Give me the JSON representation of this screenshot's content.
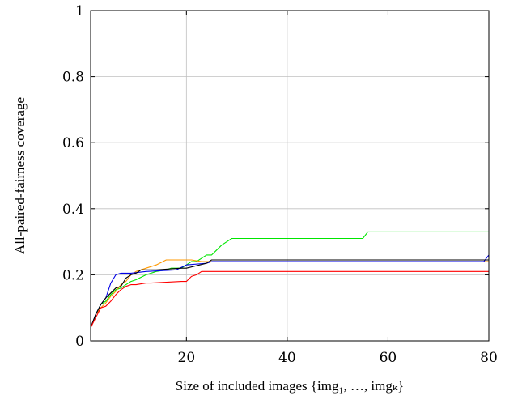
{
  "chart_data": {
    "type": "line",
    "xlabel": "Size of included images {img₁, …, imgₖ}",
    "ylabel": "All-paired-fairness coverage",
    "xlim": [
      1,
      80
    ],
    "ylim": [
      0,
      1
    ],
    "xticks": [
      20,
      40,
      60,
      80
    ],
    "yticks": [
      0,
      0.2,
      0.4,
      0.6,
      0.8,
      1
    ],
    "ytick_labels": [
      "0",
      "0.2",
      "0.4",
      "0.6",
      "0.8",
      "1"
    ],
    "grid": true,
    "legend": "none",
    "series": [
      {
        "color": "#00e600",
        "x": [
          1,
          2,
          3,
          4,
          5,
          6,
          7,
          8,
          9,
          10,
          12,
          14,
          16,
          17,
          19,
          21,
          22,
          24,
          25,
          26,
          27,
          28,
          29,
          55,
          56,
          80
        ],
        "y": [
          0.04,
          0.08,
          0.11,
          0.12,
          0.14,
          0.155,
          0.16,
          0.17,
          0.18,
          0.185,
          0.2,
          0.21,
          0.215,
          0.22,
          0.22,
          0.24,
          0.24,
          0.26,
          0.26,
          0.275,
          0.29,
          0.3,
          0.31,
          0.31,
          0.33,
          0.33
        ]
      },
      {
        "color": "#ff9900",
        "x": [
          1,
          2,
          3,
          4,
          5,
          6,
          7,
          8,
          9,
          10,
          12,
          14,
          16,
          17,
          20,
          21,
          23,
          25,
          80
        ],
        "y": [
          0.04,
          0.08,
          0.1,
          0.115,
          0.135,
          0.15,
          0.17,
          0.18,
          0.2,
          0.21,
          0.22,
          0.23,
          0.245,
          0.245,
          0.245,
          0.245,
          0.24,
          0.24,
          0.24
        ]
      },
      {
        "color": "#0000e6",
        "x": [
          1,
          2,
          3,
          4,
          5,
          6,
          7,
          9,
          12,
          18,
          20,
          24,
          25,
          79,
          80
        ],
        "y": [
          0.04,
          0.08,
          0.11,
          0.13,
          0.175,
          0.2,
          0.205,
          0.205,
          0.21,
          0.215,
          0.23,
          0.235,
          0.24,
          0.24,
          0.26
        ]
      },
      {
        "color": "#000000",
        "x": [
          1,
          2,
          3,
          4,
          5,
          6,
          7,
          8,
          9,
          10,
          11,
          14,
          19,
          20,
          24,
          25,
          80
        ],
        "y": [
          0.04,
          0.08,
          0.11,
          0.13,
          0.145,
          0.16,
          0.165,
          0.19,
          0.2,
          0.205,
          0.215,
          0.215,
          0.22,
          0.22,
          0.235,
          0.245,
          0.245
        ]
      },
      {
        "color": "#ff0000",
        "x": [
          1,
          2,
          3,
          4,
          5,
          6,
          7,
          8,
          9,
          10,
          12,
          13,
          19,
          20,
          21,
          22,
          23,
          80
        ],
        "y": [
          0.04,
          0.07,
          0.1,
          0.105,
          0.12,
          0.14,
          0.155,
          0.165,
          0.17,
          0.17,
          0.175,
          0.175,
          0.18,
          0.18,
          0.195,
          0.2,
          0.21,
          0.21
        ]
      }
    ]
  }
}
